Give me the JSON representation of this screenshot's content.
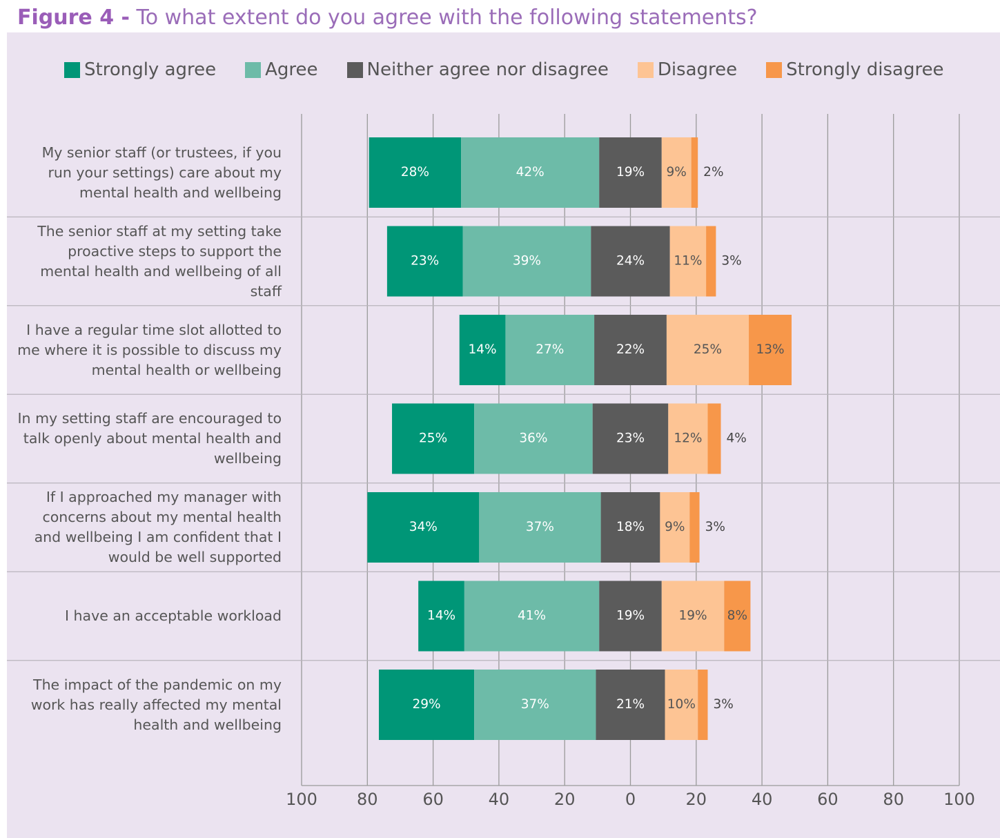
{
  "chart_data": {
    "type": "diverging_bar",
    "figure_label": "Figure 4 -",
    "title": "To what extent do you agree with the following statements?",
    "categories": [
      "My senior staff (or trustees, if you run your settings) care about my mental health and wellbeing",
      "The senior staff at my setting take proactive steps to support the mental health and wellbeing of all staff",
      "I have a regular time slot allotted to me where it is possible to discuss my mental health or wellbeing",
      "In my setting staff are encouraged to talk openly about mental health and wellbeing",
      "If I approached my manager with concerns about my mental health and wellbeing I am confident that I would be well supported",
      "I have an acceptable workload",
      "The impact of the pandemic on my work has really affected my mental health and wellbeing"
    ],
    "series": [
      {
        "name": "Strongly agree",
        "color": "#009677",
        "values": [
          28,
          23,
          14,
          25,
          34,
          14,
          29
        ],
        "value_labels": [
          "28%",
          "23%",
          "14%",
          "25%",
          "34%",
          "14%",
          "29%"
        ]
      },
      {
        "name": "Agree",
        "color": "#6dbba8",
        "values": [
          42,
          39,
          27,
          36,
          37,
          41,
          37
        ],
        "value_labels": [
          "42%",
          "39%",
          "27%",
          "36%",
          "37%",
          "41%",
          "37%"
        ]
      },
      {
        "name": "Neither agree nor disagree",
        "color": "#5b5b5b",
        "values": [
          19,
          24,
          22,
          23,
          18,
          19,
          21
        ],
        "value_labels": [
          "19%",
          "24%",
          "22%",
          "23%",
          "18%",
          "19%",
          "21%"
        ]
      },
      {
        "name": "Disagree",
        "color": "#fdc494",
        "values": [
          9,
          11,
          25,
          12,
          9,
          19,
          10
        ],
        "value_labels": [
          "9%",
          "11%",
          "25%",
          "12%",
          "9%",
          "19%",
          "10%"
        ]
      },
      {
        "name": "Strongly disagree",
        "color": "#f7974a",
        "values": [
          2,
          3,
          13,
          4,
          3,
          8,
          3
        ],
        "value_labels": [
          "2%",
          "3%",
          "13%",
          "4%",
          "3%",
          "8%",
          "3%"
        ]
      }
    ],
    "xlim": [
      -100,
      100
    ],
    "xticks": [
      {
        "value": -100,
        "label": "100"
      },
      {
        "value": -80,
        "label": "80"
      },
      {
        "value": -60,
        "label": "60"
      },
      {
        "value": -40,
        "label": "40"
      },
      {
        "value": -20,
        "label": "20"
      },
      0,
      20,
      40,
      60,
      80,
      100
    ],
    "grid": true
  }
}
